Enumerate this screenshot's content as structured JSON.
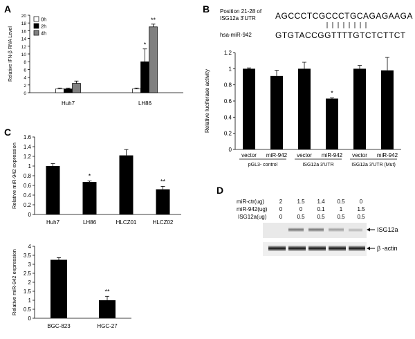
{
  "panels": {
    "A": "A",
    "B": "B",
    "C": "C",
    "D": "D"
  },
  "chart_data": [
    {
      "id": "A",
      "type": "bar",
      "title": "",
      "xlabel": "",
      "ylabel": "Relative IFN-β RNA Level",
      "ylim": [
        0,
        20
      ],
      "yticks": [
        "0",
        "2",
        "4",
        "6",
        "8",
        "10",
        "12",
        "14",
        "16",
        "18",
        "20"
      ],
      "categories": [
        "Huh7",
        "LH86"
      ],
      "legend_position": "top-left",
      "series": [
        {
          "name": "0h",
          "color": "#ffffff",
          "values": [
            1.0,
            1.0
          ],
          "errors": [
            0.2,
            0.2
          ]
        },
        {
          "name": "2h",
          "color": "#000000",
          "values": [
            1.0,
            8.0
          ],
          "errors": [
            0.2,
            3.3
          ]
        },
        {
          "name": "4h",
          "color": "#808080",
          "values": [
            2.4,
            17.0
          ],
          "errors": [
            0.6,
            0.7
          ]
        }
      ],
      "annotations": [
        {
          "category": 1,
          "series": 1,
          "text": "*"
        },
        {
          "category": 1,
          "series": 2,
          "text": "**"
        }
      ]
    },
    {
      "id": "B",
      "type": "bar",
      "title": "",
      "xlabel": "",
      "ylabel": "Relative luciferase activity",
      "ylim": [
        0,
        1.2
      ],
      "yticks": [
        "0",
        "0.2",
        "0.4",
        "0.6",
        "0.8",
        "1",
        "1.2"
      ],
      "categories": [
        "vector",
        "miR-942",
        "vector",
        "miR-942",
        "vector",
        "miR-942"
      ],
      "values": [
        1.0,
        0.91,
        1.0,
        0.63,
        1.0,
        0.98
      ],
      "errors": [
        0.01,
        0.07,
        0.08,
        0.01,
        0.04,
        0.16
      ],
      "groups": [
        "pGL3- control",
        "ISG12a 3'UTR",
        "ISG12a 3'UTR (Mut)"
      ],
      "annotations": [
        {
          "index": 3,
          "text": "*"
        }
      ]
    },
    {
      "id": "C1",
      "type": "bar",
      "title": "",
      "xlabel": "",
      "ylabel": "Relative miR-942 expression",
      "ylim": [
        0,
        1.6
      ],
      "yticks": [
        "0",
        "0.2",
        "0.4",
        "0.6",
        "0.8",
        "1",
        "1.2",
        "1.4",
        "1.6"
      ],
      "categories": [
        "Huh7",
        "LH86",
        "HLCZ01",
        "HLCZ02"
      ],
      "values": [
        1.0,
        0.67,
        1.22,
        0.52
      ],
      "errors": [
        0.05,
        0.02,
        0.12,
        0.06
      ],
      "annotations": [
        {
          "index": 1,
          "text": "*"
        },
        {
          "index": 3,
          "text": "**"
        }
      ]
    },
    {
      "id": "C2",
      "type": "bar",
      "title": "",
      "xlabel": "",
      "ylabel": "Relative miR-942 expression",
      "ylim": [
        0,
        4
      ],
      "yticks": [
        "0",
        "0.5",
        "1",
        "1.5",
        "2",
        "2.5",
        "3",
        "3.5",
        "4"
      ],
      "categories": [
        "BGC-823",
        "HGC-27"
      ],
      "values": [
        3.25,
        1.0
      ],
      "errors": [
        0.12,
        0.22
      ],
      "annotations": [
        {
          "index": 1,
          "text": "**"
        }
      ]
    }
  ],
  "sequence": {
    "label_line1": "Position 21-28 of",
    "label_line2": "ISG12a 3'UTR",
    "utr_seq": "AGCCCTCGCCCTGCAGAGAAGA",
    "mir_label": "hsa-miR-942",
    "mir_seq": "GTGTACCGGTTTTGTCTCTTCT"
  },
  "blot": {
    "rows": [
      {
        "label": "miR-ctr(ug)",
        "values": [
          "2",
          "1.5",
          "1.4",
          "0.5",
          "0"
        ]
      },
      {
        "label": "miR-942(ug)",
        "values": [
          "0",
          "0",
          "0.1",
          "1",
          "1.5"
        ]
      },
      {
        "label": "ISG12a(ug)",
        "values": [
          "0",
          "0.5",
          "0.5",
          "0.5",
          "0.5"
        ]
      }
    ],
    "band_labels": [
      "ISG12a",
      "β -actin"
    ]
  }
}
